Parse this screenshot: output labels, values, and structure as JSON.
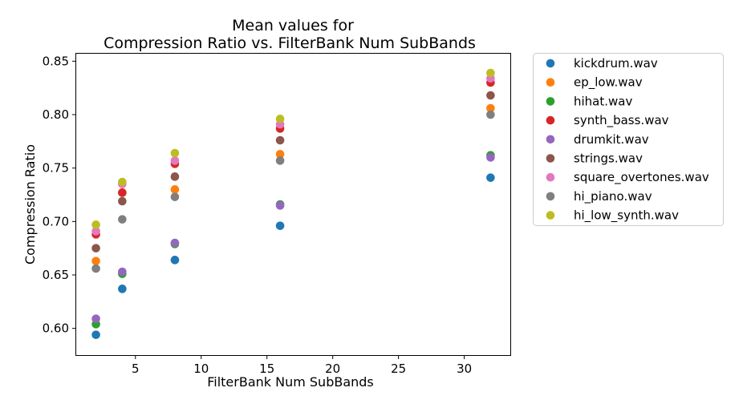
{
  "chart_data": {
    "type": "scatter",
    "title_lines": [
      "Mean values for",
      "Compression Ratio vs. FilterBank Num SubBands"
    ],
    "xlabel": "FilterBank Num SubBands",
    "ylabel": "Compression Ratio",
    "xlim": [
      0.5,
      33.5
    ],
    "ylim": [
      0.575,
      0.857
    ],
    "xticks": [
      5,
      10,
      15,
      20,
      25,
      30
    ],
    "yticks": [
      0.6,
      0.65,
      0.7,
      0.75,
      0.8,
      0.85
    ],
    "x": [
      2,
      4,
      8,
      16,
      32
    ],
    "grid": false,
    "legend_position": "outside-right",
    "series": [
      {
        "name": "kickdrum.wav",
        "color": "#1f77b4",
        "values": [
          0.594,
          0.637,
          0.664,
          0.696,
          0.741
        ]
      },
      {
        "name": "ep_low.wav",
        "color": "#ff7f0e",
        "values": [
          0.663,
          0.727,
          0.73,
          0.763,
          0.806
        ]
      },
      {
        "name": "hihat.wav",
        "color": "#2ca02c",
        "values": [
          0.604,
          0.651,
          0.679,
          0.716,
          0.762
        ]
      },
      {
        "name": "synth_bass.wav",
        "color": "#d62728",
        "values": [
          0.688,
          0.727,
          0.754,
          0.787,
          0.83
        ]
      },
      {
        "name": "drumkit.wav",
        "color": "#9467bd",
        "values": [
          0.609,
          0.653,
          0.68,
          0.715,
          0.76
        ]
      },
      {
        "name": "strings.wav",
        "color": "#8c564b",
        "values": [
          0.675,
          0.719,
          0.742,
          0.776,
          0.818
        ]
      },
      {
        "name": "square_overtones.wav",
        "color": "#e377c2",
        "values": [
          0.691,
          0.735,
          0.757,
          0.791,
          0.834
        ]
      },
      {
        "name": "hi_piano.wav",
        "color": "#7f7f7f",
        "values": [
          0.656,
          0.702,
          0.723,
          0.757,
          0.8
        ]
      },
      {
        "name": "hi_low_synth.wav",
        "color": "#bcbd22",
        "values": [
          0.697,
          0.737,
          0.764,
          0.796,
          0.839
        ]
      }
    ]
  }
}
